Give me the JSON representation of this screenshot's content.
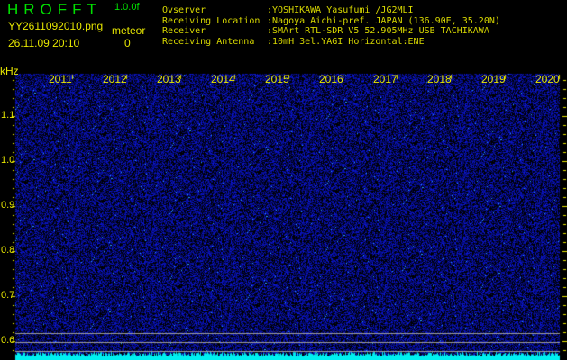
{
  "header": {
    "app_title": "HROFFT",
    "version": "1.0.0f",
    "filename": "YY2611092010.png",
    "datetime": "26.11.09 20:10",
    "meteor_label": "meteor",
    "meteor_count": "0"
  },
  "info": [
    {
      "key": "Ovserver",
      "value": ":YOSHIKAWA Yasufumi /JG2MLI"
    },
    {
      "key": "Receiving Location",
      "value": ":Nagoya Aichi-pref. JAPAN (136.90E, 35.20N)"
    },
    {
      "key": "Receiver",
      "value": ":SMArt RTL-SDR V5 52.905MHz USB TACHIKAWA"
    },
    {
      "key": "Receiving Antenna",
      "value": ":10mH 3el.YAGI Horizontal:ENE"
    }
  ],
  "spectrogram": {
    "y_unit": "kHz",
    "y_ticks": [
      "1.1",
      "1.0",
      "0.9",
      "0.8",
      "0.7",
      "0.6"
    ],
    "x_labels": [
      "2011",
      "2012",
      "2013",
      "2014",
      "2015",
      "2016",
      "2017",
      "2018",
      "2019",
      "2020"
    ],
    "colors": {
      "background": "#000000",
      "noise": "#1020c0",
      "signal": "#00ffff",
      "text": "#e6e600",
      "title": "#00e000"
    }
  }
}
